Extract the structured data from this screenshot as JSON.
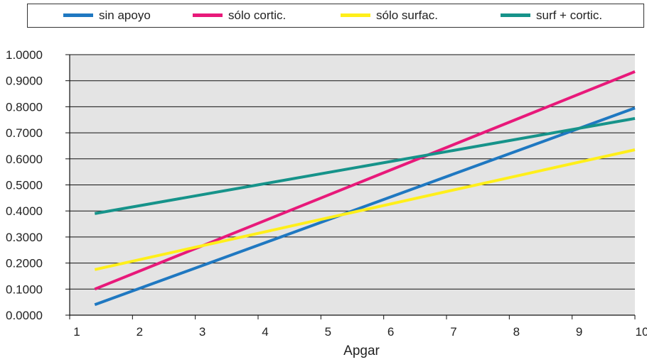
{
  "chart_data": {
    "type": "line",
    "title": "",
    "xlabel": "Apgar",
    "ylabel": "",
    "xlim": [
      1,
      10
    ],
    "ylim": [
      0,
      1
    ],
    "x_ticks": [
      "1",
      "2",
      "3",
      "4",
      "5",
      "6",
      "7",
      "8",
      "9",
      "10"
    ],
    "y_ticks": [
      "0.0000",
      "0.1000",
      "0.2000",
      "0.3000",
      "0.4000",
      "0.5000",
      "0.6000",
      "0.7000",
      "0.8000",
      "0.9000",
      "1.0000"
    ],
    "grid": true,
    "legend_position": "top",
    "background_color": "#e4e4e4",
    "series": [
      {
        "name": "sin apoyo",
        "color": "#1f78c1",
        "x": [
          1.4,
          10
        ],
        "y": [
          0.04,
          0.795
        ]
      },
      {
        "name": "sólo cortic.",
        "color": "#e8197a",
        "x": [
          1.4,
          10
        ],
        "y": [
          0.1,
          0.935
        ]
      },
      {
        "name": "sólo surfac.",
        "color": "#ffef1a",
        "x": [
          1.4,
          10
        ],
        "y": [
          0.175,
          0.635
        ]
      },
      {
        "name": "surf + cortic.",
        "color": "#16938a",
        "x": [
          1.4,
          10
        ],
        "y": [
          0.39,
          0.755
        ]
      }
    ]
  }
}
